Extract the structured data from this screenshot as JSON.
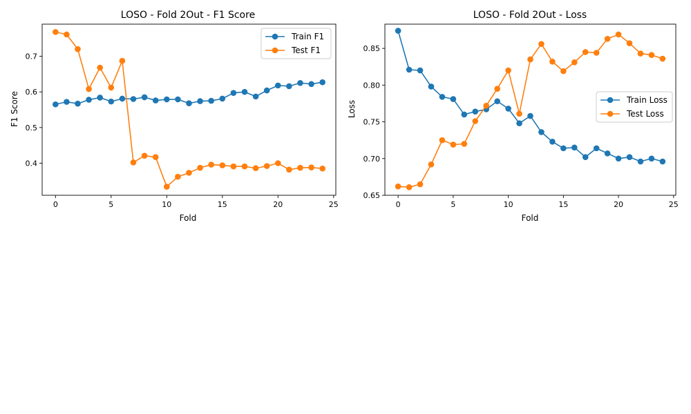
{
  "chart_data": [
    {
      "type": "line",
      "title": "LOSO - Fold 2Out - F1 Score",
      "xlabel": "Fold",
      "ylabel": "F1 Score",
      "xlim": [
        -1.2,
        25.2
      ],
      "ylim": [
        0.31,
        0.79
      ],
      "xticks": [
        0,
        5,
        10,
        15,
        20,
        25
      ],
      "yticks": [
        0.4,
        0.5,
        0.6,
        0.7
      ],
      "ytick_decimals": 1,
      "legend_position": "top-right",
      "x": [
        0,
        1,
        2,
        3,
        4,
        5,
        6,
        7,
        8,
        9,
        10,
        11,
        12,
        13,
        14,
        15,
        16,
        17,
        18,
        19,
        20,
        21,
        22,
        23,
        24
      ],
      "series": [
        {
          "name": "Train F1",
          "color": "#1f77b4",
          "values": [
            0.565,
            0.572,
            0.567,
            0.578,
            0.584,
            0.573,
            0.581,
            0.58,
            0.585,
            0.576,
            0.579,
            0.579,
            0.568,
            0.574,
            0.575,
            0.581,
            0.597,
            0.6,
            0.587,
            0.604,
            0.618,
            0.616,
            0.625,
            0.622,
            0.627
          ]
        },
        {
          "name": "Test F1",
          "color": "#ff7f0e",
          "values": [
            0.768,
            0.761,
            0.72,
            0.608,
            0.668,
            0.612,
            0.687,
            0.402,
            0.421,
            0.417,
            0.334,
            0.362,
            0.373,
            0.387,
            0.396,
            0.394,
            0.391,
            0.391,
            0.386,
            0.392,
            0.4,
            0.382,
            0.387,
            0.388,
            0.385
          ]
        }
      ]
    },
    {
      "type": "line",
      "title": "LOSO - Fold 2Out - Loss",
      "xlabel": "Fold",
      "ylabel": "Loss",
      "xlim": [
        -1.2,
        25.2
      ],
      "ylim": [
        0.65,
        0.883
      ],
      "xticks": [
        0,
        5,
        10,
        15,
        20,
        25
      ],
      "yticks": [
        0.65,
        0.7,
        0.75,
        0.8,
        0.85
      ],
      "ytick_decimals": 2,
      "legend_position": "center-right",
      "x": [
        0,
        1,
        2,
        3,
        4,
        5,
        6,
        7,
        8,
        9,
        10,
        11,
        12,
        13,
        14,
        15,
        16,
        17,
        18,
        19,
        20,
        21,
        22,
        23,
        24
      ],
      "series": [
        {
          "name": "Train Loss",
          "color": "#1f77b4",
          "values": [
            0.874,
            0.821,
            0.82,
            0.798,
            0.784,
            0.781,
            0.76,
            0.764,
            0.767,
            0.778,
            0.768,
            0.748,
            0.758,
            0.736,
            0.723,
            0.714,
            0.715,
            0.702,
            0.714,
            0.707,
            0.7,
            0.702,
            0.696,
            0.7,
            0.696
          ]
        },
        {
          "name": "Test Loss",
          "color": "#ff7f0e",
          "values": [
            0.662,
            0.661,
            0.665,
            0.692,
            0.725,
            0.719,
            0.72,
            0.751,
            0.772,
            0.795,
            0.82,
            0.761,
            0.835,
            0.856,
            0.832,
            0.819,
            0.831,
            0.845,
            0.844,
            0.863,
            0.869,
            0.857,
            0.843,
            0.841,
            0.836
          ]
        }
      ]
    }
  ]
}
